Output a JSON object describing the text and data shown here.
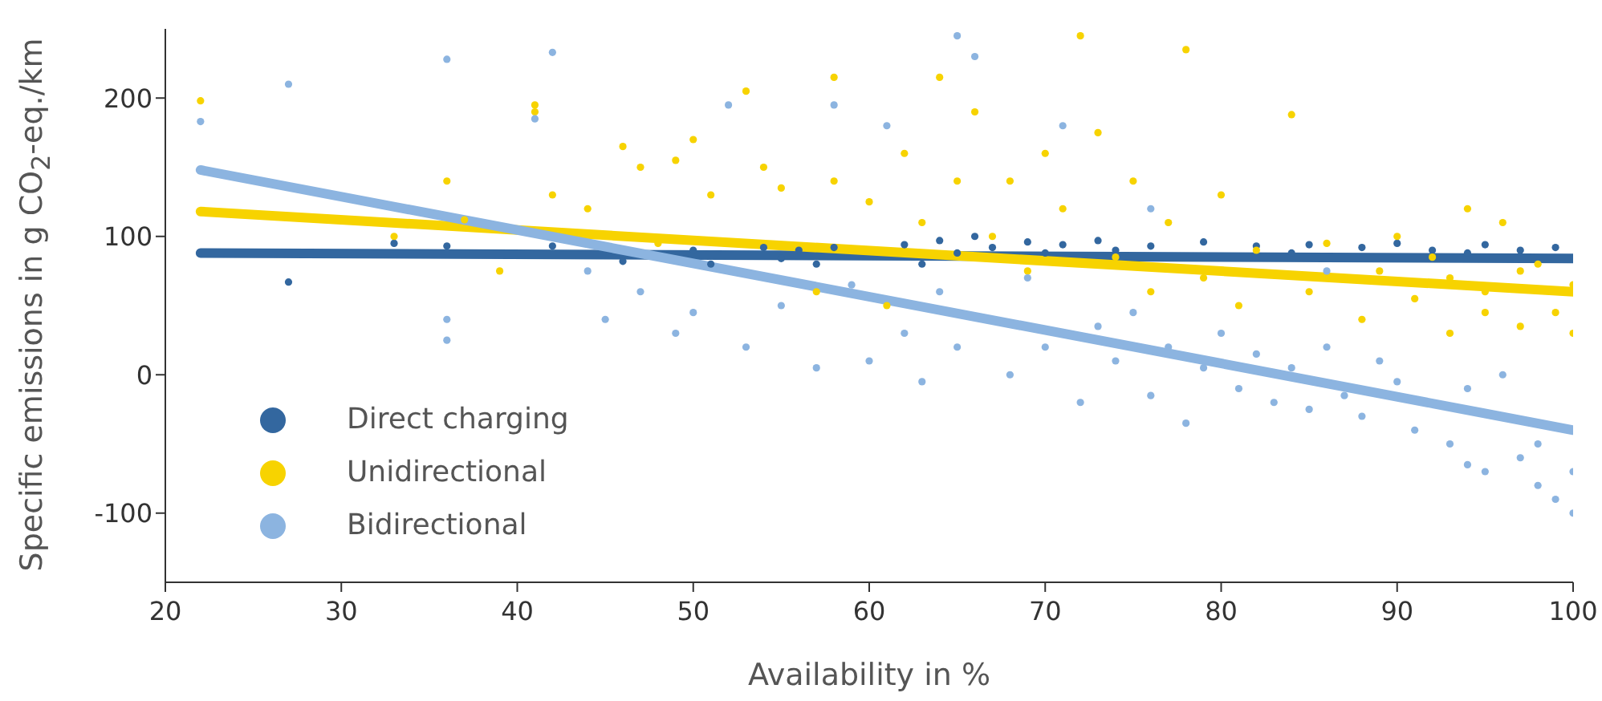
{
  "chart_data": {
    "type": "scatter",
    "xlabel": "Availability in %",
    "ylabel": "Specific emissions in g CO$_{2}$-eq./km",
    "xlim": [
      20,
      100
    ],
    "xticks": [
      20,
      30,
      40,
      50,
      60,
      70,
      80,
      90,
      100
    ],
    "ylim": [
      -150,
      250
    ],
    "yticks": [
      -100,
      0,
      100,
      200
    ],
    "legend": "bottom left",
    "series": [
      {
        "name": "Direct charging",
        "marker": "circle",
        "color": "#33679f",
        "x": [
          27,
          33,
          36,
          42,
          46,
          50,
          51,
          54,
          55,
          56,
          57,
          58,
          62,
          63,
          64,
          65,
          66,
          67,
          69,
          70,
          71,
          73,
          74,
          76,
          79,
          82,
          84,
          85,
          88,
          90,
          92,
          94,
          95,
          97,
          99
        ],
        "values": [
          67,
          95,
          93,
          93,
          82,
          90,
          80,
          92,
          84,
          90,
          80,
          92,
          94,
          80,
          97,
          88,
          100,
          92,
          96,
          88,
          94,
          97,
          90,
          93,
          96,
          93,
          88,
          94,
          92,
          95,
          90,
          88,
          94,
          90,
          92
        ]
      },
      {
        "name": "Unidirectional",
        "marker": "circle",
        "color": "#f7d300",
        "x": [
          22,
          33,
          36,
          37,
          39,
          41,
          41,
          42,
          44,
          46,
          47,
          48,
          49,
          50,
          51,
          53,
          54,
          55,
          57,
          58,
          58,
          60,
          61,
          62,
          63,
          64,
          65,
          66,
          67,
          68,
          69,
          70,
          71,
          72,
          73,
          74,
          75,
          76,
          77,
          78,
          79,
          80,
          81,
          82,
          84,
          85,
          86,
          88,
          89,
          90,
          91,
          92,
          93,
          94,
          95,
          96,
          97,
          98,
          99,
          100,
          100,
          97,
          95,
          93
        ],
        "values": [
          198,
          100,
          140,
          112,
          75,
          195,
          190,
          130,
          120,
          165,
          150,
          95,
          155,
          170,
          130,
          205,
          150,
          135,
          60,
          215,
          140,
          125,
          50,
          160,
          110,
          215,
          140,
          190,
          100,
          140,
          75,
          160,
          120,
          245,
          175,
          85,
          140,
          60,
          110,
          235,
          70,
          130,
          50,
          90,
          188,
          60,
          95,
          40,
          75,
          100,
          55,
          85,
          30,
          120,
          60,
          110,
          35,
          80,
          45,
          65,
          30,
          75,
          45,
          70
        ]
      },
      {
        "name": "Bidirectional",
        "marker": "circle",
        "color": "#8cb4e0",
        "x": [
          22,
          27,
          36,
          36,
          36,
          42,
          41,
          44,
          45,
          47,
          49,
          50,
          52,
          53,
          55,
          57,
          58,
          59,
          60,
          61,
          62,
          63,
          64,
          65,
          65,
          66,
          68,
          69,
          70,
          71,
          72,
          73,
          74,
          75,
          76,
          77,
          78,
          79,
          80,
          81,
          82,
          83,
          84,
          85,
          86,
          87,
          88,
          89,
          90,
          91,
          93,
          94,
          95,
          97,
          98,
          99,
          100,
          98,
          96,
          94,
          100,
          86,
          76
        ],
        "values": [
          183,
          210,
          228,
          40,
          25,
          233,
          185,
          75,
          40,
          60,
          30,
          45,
          195,
          20,
          50,
          5,
          195,
          65,
          10,
          180,
          30,
          -5,
          60,
          245,
          20,
          230,
          0,
          70,
          20,
          180,
          -20,
          35,
          10,
          45,
          -15,
          20,
          -35,
          5,
          30,
          -10,
          15,
          -20,
          5,
          -25,
          20,
          -15,
          -30,
          10,
          -5,
          -40,
          -50,
          -10,
          -70,
          -60,
          -80,
          -90,
          -100,
          -50,
          0,
          -65,
          -70,
          75,
          120
        ]
      },
      {
        "type": "line",
        "color": "#33679f",
        "x": [
          22,
          100
        ],
        "values": [
          88,
          84
        ]
      },
      {
        "type": "line",
        "color": "#f7d300",
        "x": [
          22,
          100
        ],
        "values": [
          118,
          60
        ]
      },
      {
        "type": "line",
        "color": "#8cb4e0",
        "x": [
          22,
          100
        ],
        "values": [
          148,
          -40
        ]
      }
    ]
  }
}
